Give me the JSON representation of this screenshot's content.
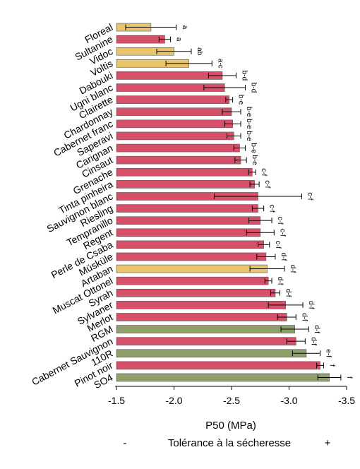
{
  "chart_data": {
    "type": "bar",
    "orientation": "horizontal",
    "xlabel": "P50 (MPa)",
    "xlim": [
      -1.5,
      -3.5
    ],
    "xticks": [
      -1.5,
      -2.0,
      -2.5,
      -3.0,
      -3.5
    ],
    "xtick_labels": [
      "-1.5",
      "-2.0",
      "-2.5",
      "-3.0",
      "-3.5"
    ],
    "colors": {
      "yellow": "#e8c56a",
      "red": "#d6506a",
      "green": "#8f9f6a"
    },
    "categories": [
      "Floreal",
      "Sultanine",
      "Vidoc",
      "Voltis",
      "Dabouki",
      "Ugni blanc",
      "Clairette",
      "Chardonnay",
      "Cabernet franc",
      "Saperavi",
      "Carignan",
      "Cinsaut",
      "Grenache",
      "Tinta pinheira",
      "Sauvignon blanc",
      "Riesling",
      "Tempranillo",
      "Regent",
      "Perle de Csaba",
      "Müsküle",
      "Artaban",
      "Muscat Ottonel",
      "Syrah",
      "Sylvaner",
      "Merlot",
      "RGM",
      "Cabernet Sauvignon",
      "110R",
      "Pinot noir",
      "SO4"
    ],
    "values": [
      -1.8,
      -1.92,
      -2.0,
      -2.13,
      -2.42,
      -2.44,
      -2.48,
      -2.5,
      -2.51,
      -2.52,
      -2.57,
      -2.58,
      -2.68,
      -2.7,
      -2.73,
      -2.73,
      -2.75,
      -2.75,
      -2.78,
      -2.8,
      -2.81,
      -2.82,
      -2.88,
      -2.97,
      -2.98,
      -3.05,
      -3.06,
      -3.15,
      -3.27,
      -3.35
    ],
    "errors": [
      0.22,
      0.05,
      0.15,
      0.2,
      0.12,
      0.18,
      0.03,
      0.08,
      0.07,
      0.06,
      0.05,
      0.05,
      0.03,
      0.04,
      0.38,
      0.05,
      0.1,
      0.12,
      0.05,
      0.08,
      0.15,
      0.03,
      0.04,
      0.15,
      0.08,
      0.12,
      0.08,
      0.12,
      0.03,
      0.1
    ],
    "bar_colors": [
      "yellow",
      "red",
      "yellow",
      "yellow",
      "red",
      "red",
      "red",
      "red",
      "red",
      "red",
      "red",
      "red",
      "red",
      "red",
      "red",
      "red",
      "red",
      "red",
      "red",
      "red",
      "yellow",
      "red",
      "red",
      "red",
      "red",
      "green",
      "red",
      "green",
      "red",
      "green"
    ],
    "significance": [
      "a",
      "a",
      "ab",
      "a-c",
      "b-d",
      "b-d",
      "b-e",
      "b-e",
      "b-e",
      "b-e",
      "b-e",
      "b-e",
      "c-f",
      "c-f",
      "c-f",
      "c-f",
      "c-f",
      "c-f",
      "c-f",
      "d-f",
      "d-f",
      "d-f",
      "d-f",
      "d-f",
      "d-f",
      "d-f",
      "d-f",
      "e-f",
      "f",
      "f"
    ]
  },
  "legend": {
    "minus": "-",
    "text": "Tolérance à la sécheresse",
    "plus": "+"
  }
}
